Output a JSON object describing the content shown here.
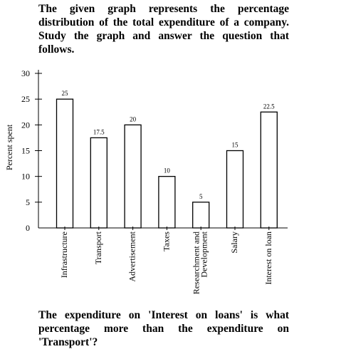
{
  "intro": "The given graph represents the percentage distribution of the total expenditure of a company. Study the graph and answer the question that follows.",
  "question": "The expenditure on 'Interest on loans' is what percentage more than the expenditure on 'Transport'?",
  "chart_data": {
    "type": "bar",
    "categories": [
      "Infrastructure",
      "Transport",
      "Advertisement",
      "Taxes",
      "Researchment and Development",
      "Salary",
      "Interest on loan"
    ],
    "category_lines": [
      [
        "Infrastructure"
      ],
      [
        "Transport"
      ],
      [
        "Advertisement"
      ],
      [
        "Taxes"
      ],
      [
        "Researchment and",
        "Development"
      ],
      [
        "Salary"
      ],
      [
        "Interest on loan"
      ]
    ],
    "values": [
      25,
      17.5,
      20,
      10,
      5,
      15,
      22.5
    ],
    "data_labels": [
      "25",
      "17.5",
      "20",
      "10",
      "5",
      "15",
      "22.5"
    ],
    "title": "",
    "xlabel": "",
    "ylabel": "Percent spent",
    "ylim": [
      0,
      30
    ],
    "yticks": [
      0,
      5,
      10,
      15,
      20,
      25,
      30
    ],
    "grid": false,
    "bar_fill": "#ffffff",
    "bar_stroke": "#000000"
  }
}
